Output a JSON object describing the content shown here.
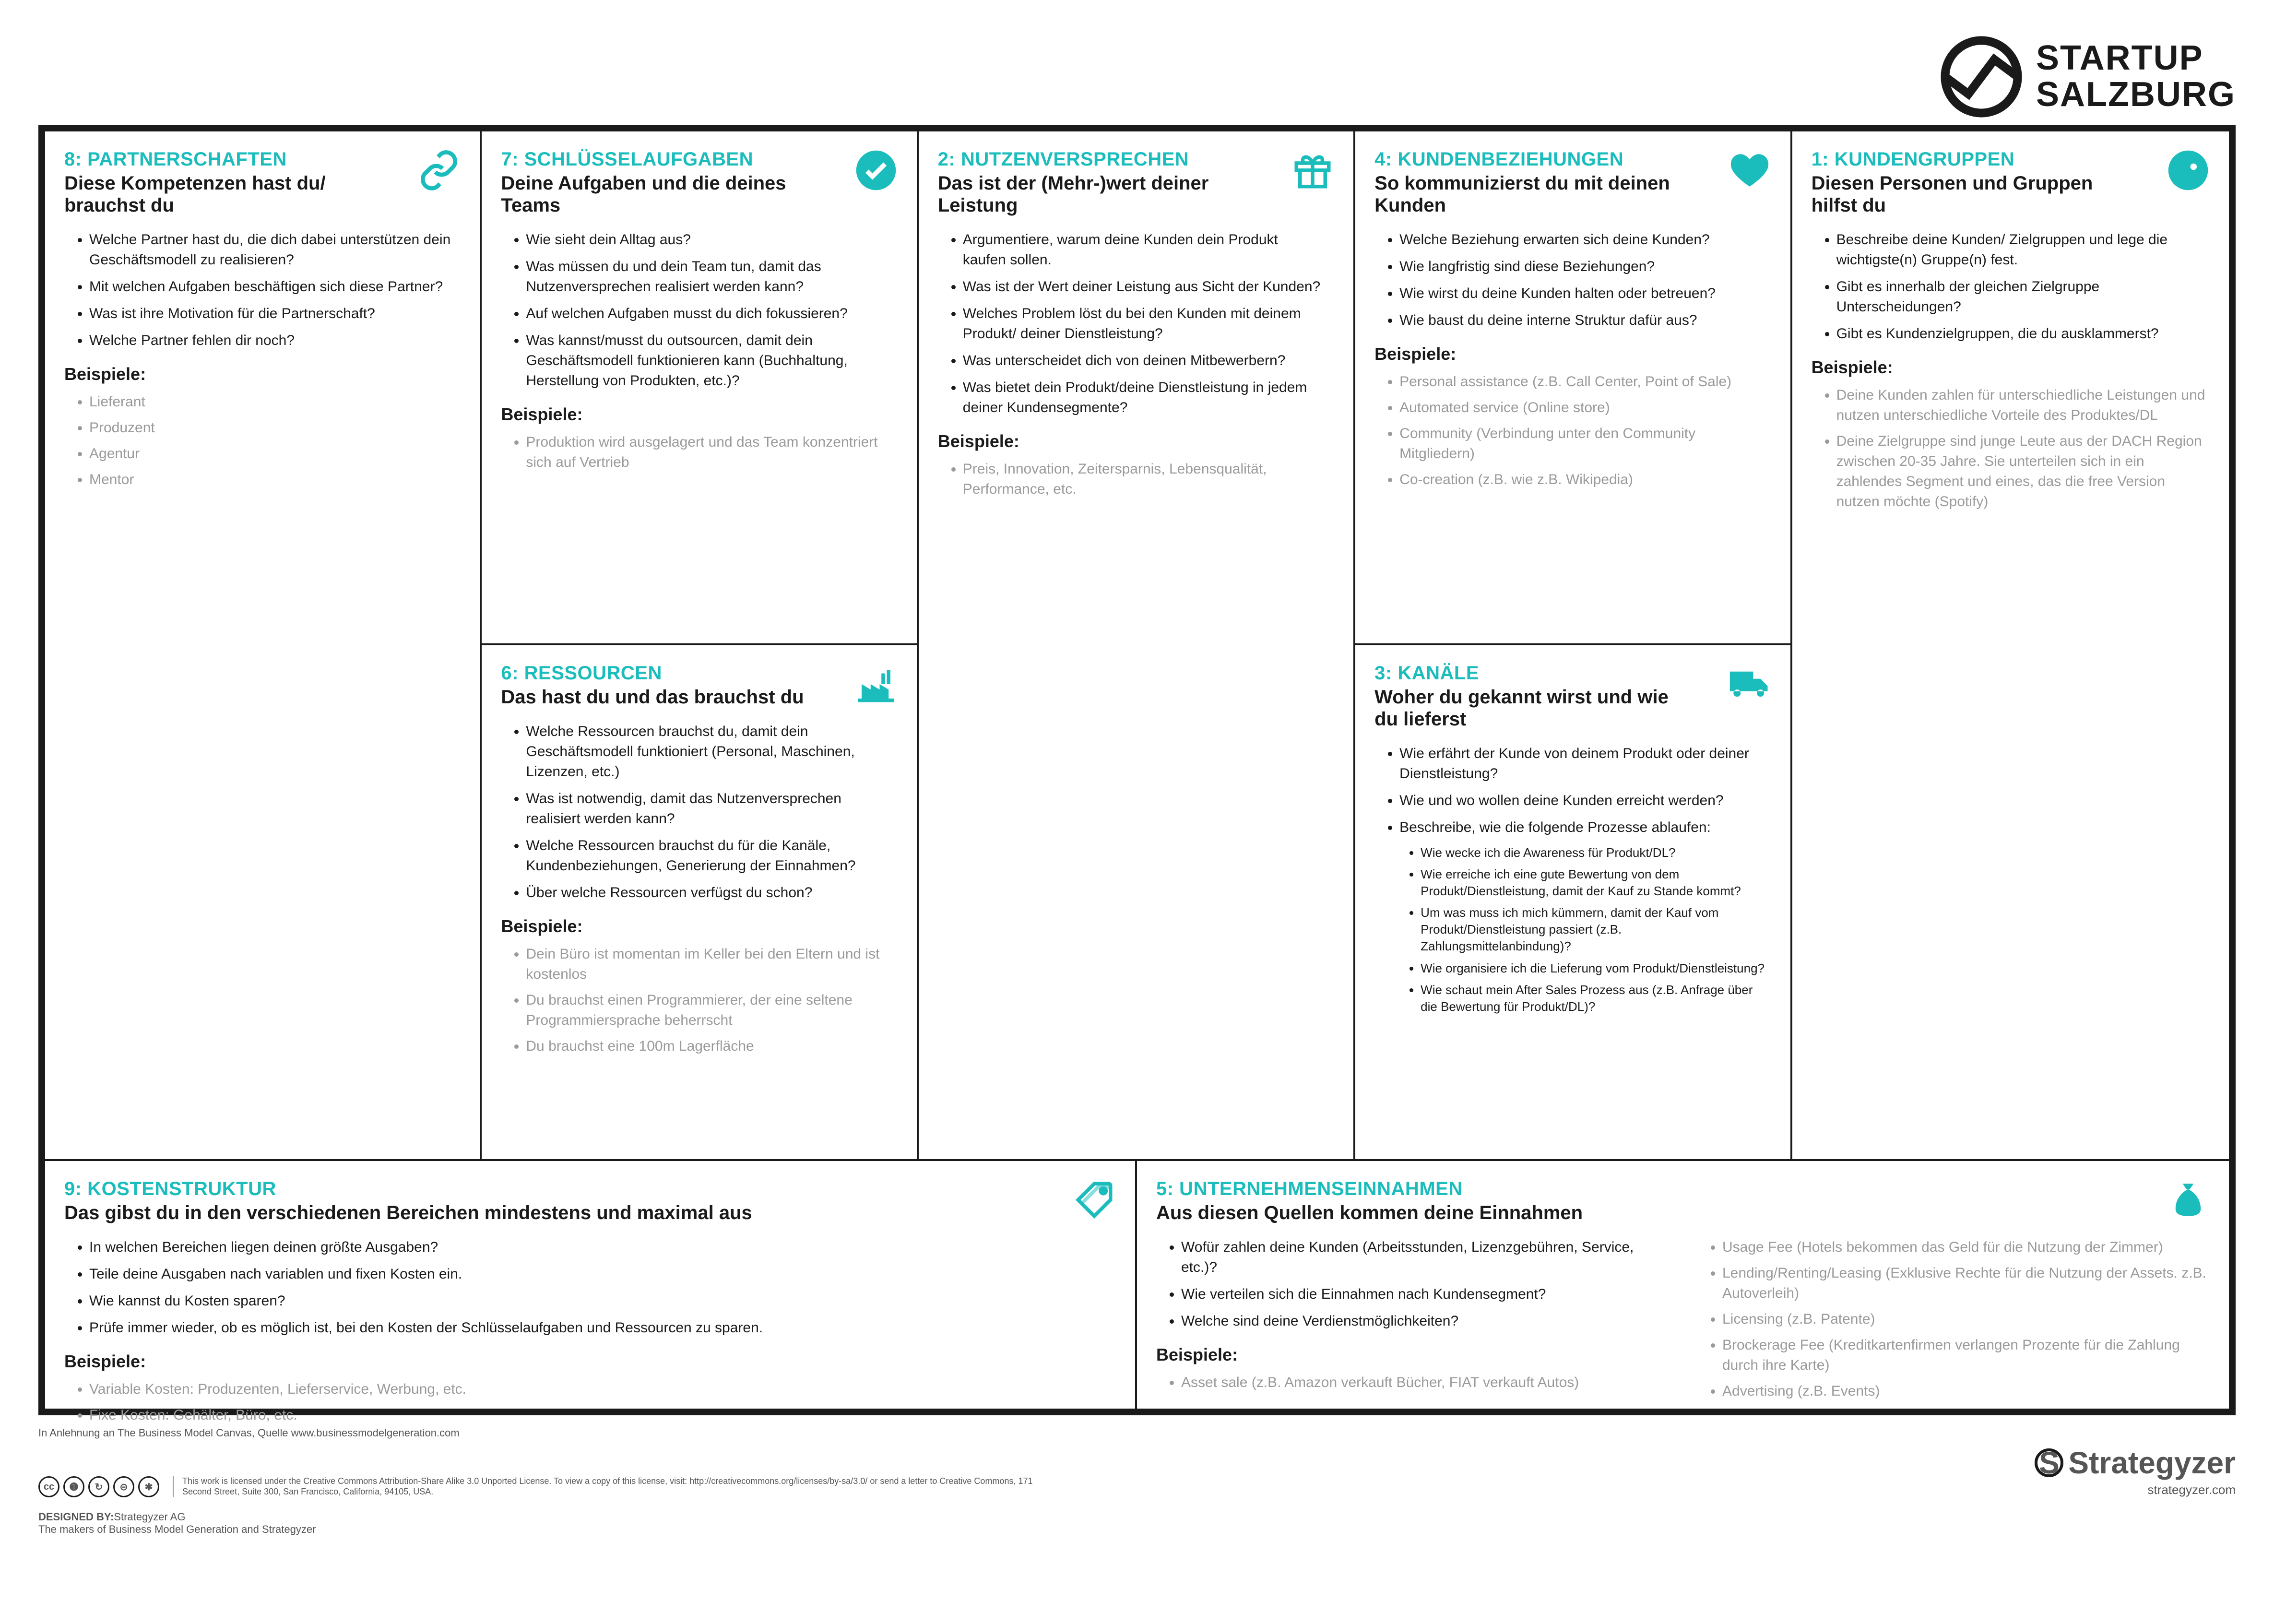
{
  "brand": {
    "line1": "STARTUP",
    "line2": "SALZBURG"
  },
  "accent_color": "#1abcbc",
  "cells": {
    "partnerships": {
      "title": "8: PARTNERSCHAFTEN",
      "subtitle": "Diese Kompetenzen hast du/ brauchst du",
      "questions": [
        "Welche Partner hast du, die dich dabei unterstützen dein Geschäftsmodell zu realisieren?",
        "Mit welchen Aufgaben beschäftigen sich diese Partner?",
        "Was ist ihre Motivation für die Partnerschaft?",
        "Welche Partner fehlen dir noch?"
      ],
      "examples_head": "Beispiele:",
      "examples": [
        "Lieferant",
        "Produzent",
        "Agentur",
        "Mentor"
      ]
    },
    "activities": {
      "title": "7: SCHLÜSSELAUFGABEN",
      "subtitle": "Deine Aufgaben und die deines Teams",
      "questions": [
        "Wie sieht dein Alltag aus?",
        "Was müssen du und dein Team tun, damit das Nutzenversprechen realisiert werden kann?",
        "Auf welchen Aufgaben musst du dich fokussieren?",
        "Was kannst/musst du outsourcen, damit dein Geschäftsmodell funktionieren kann (Buchhaltung, Herstellung von Produkten, etc.)?"
      ],
      "examples_head": "Beispiele:",
      "examples": [
        "Produktion wird ausgelagert und das Team konzentriert sich auf Vertrieb"
      ]
    },
    "resources": {
      "title": "6: RESSOURCEN",
      "subtitle": "Das hast du und das brauchst du",
      "questions": [
        "Welche Ressourcen brauchst du, damit dein Geschäftsmodell funktioniert (Personal, Maschinen, Lizenzen, etc.)",
        "Was ist notwendig, damit das Nutzenversprechen realisiert werden kann?",
        "Welche Ressourcen brauchst du für die Kanäle, Kundenbeziehungen, Generierung der Einnahmen?",
        "Über welche Ressourcen verfügst du schon?"
      ],
      "examples_head": "Beispiele:",
      "examples": [
        "Dein Büro ist momentan im Keller bei den Eltern und ist kostenlos",
        "Du brauchst einen Programmierer, der eine seltene Programmiersprache beherrscht",
        "Du brauchst eine 100m Lagerfläche"
      ]
    },
    "value": {
      "title": "2: NUTZENVERSPRECHEN",
      "subtitle": "Das ist der (Mehr-)wert deiner Leistung",
      "questions": [
        "Argumentiere, warum deine Kunden dein Produkt kaufen sollen.",
        "Was ist der Wert deiner Leistung aus Sicht der Kunden?",
        "Welches Problem löst du bei den Kunden mit deinem Produkt/ deiner Dienstleistung?",
        "Was unterscheidet dich von deinen Mitbewerbern?",
        "Was bietet dein Produkt/deine Dienstleistung in jedem deiner Kundensegmente?"
      ],
      "examples_head": "Beispiele:",
      "examples": [
        "Preis, Innovation, Zeitersparnis, Lebensqualität, Performance, etc."
      ]
    },
    "relations": {
      "title": "4: KUNDENBEZIEHUNGEN",
      "subtitle": "So kommunizierst du mit deinen Kunden",
      "questions": [
        "Welche Beziehung erwarten sich deine Kunden?",
        "Wie langfristig sind diese Beziehungen?",
        "Wie wirst du deine Kunden halten oder betreuen?",
        "Wie baust du deine interne Struktur dafür aus?"
      ],
      "examples_head": "Beispiele:",
      "examples": [
        "Personal assistance (z.B. Call Center, Point of Sale)",
        "Automated service (Online store)",
        "Community (Verbindung unter den Community Mitgliedern)",
        "Co-creation (z.B. wie z.B. Wikipedia)"
      ]
    },
    "channels": {
      "title": "3: KANÄLE",
      "subtitle": "Woher du gekannt wirst und wie du lieferst",
      "questions": [
        "Wie erfährt der Kunde von deinem Produkt oder deiner Dienstleistung?",
        "Wie und wo wollen deine Kunden erreicht werden?",
        "Beschreibe, wie die folgende Prozesse ablaufen:"
      ],
      "subquestions": [
        "Wie wecke ich die Awareness für Produkt/DL?",
        "Wie erreiche ich eine gute Bewertung von dem Produkt/Dienstleistung, damit der Kauf zu Stande kommt?",
        "Um was muss ich mich kümmern, damit der Kauf vom Produkt/Dienstleistung passiert (z.B. Zahlungsmittelanbindung)?",
        "Wie organisiere ich die Lieferung vom Produkt/Dienstleistung?",
        "Wie schaut mein After Sales Prozess aus (z.B. Anfrage über die Bewertung für Produkt/DL)?"
      ]
    },
    "segments": {
      "title": "1: KUNDENGRUPPEN",
      "subtitle": "Diesen Personen und Gruppen hilfst du",
      "questions": [
        "Beschreibe deine Kunden/ Zielgruppen und lege die wichtigste(n) Gruppe(n) fest.",
        "Gibt es innerhalb der gleichen Zielgruppe Unterscheidungen?",
        "Gibt es Kundenzielgruppen, die du ausklammerst?"
      ],
      "examples_head": "Beispiele:",
      "examples": [
        "Deine Kunden zahlen für unterschiedliche Leistungen und nutzen unterschiedliche Vorteile des Produktes/DL",
        "Deine Zielgruppe sind junge Leute aus der DACH Region zwischen 20-35 Jahre. Sie unterteilen sich in ein zahlendes Segment und eines, das die free Version nutzen möchte (Spotify)"
      ]
    },
    "costs": {
      "title": "9: KOSTENSTRUKTUR",
      "subtitle": "Das gibst du in den verschiedenen Bereichen mindestens und maximal aus",
      "questions": [
        "In welchen Bereichen liegen deinen größte Ausgaben?",
        "Teile deine Ausgaben nach variablen und fixen Kosten ein.",
        "Wie kannst du Kosten sparen?",
        "Prüfe immer wieder, ob es möglich ist, bei den Kosten der Schlüsselaufgaben und Ressourcen zu sparen."
      ],
      "examples_head": "Beispiele:",
      "examples": [
        "Variable Kosten: Produzenten, Lieferservice, Werbung, etc.",
        "Fixe Kosten: Gehälter, Büro, etc."
      ]
    },
    "revenue": {
      "title": "5: UNTERNEHMENSEINNAHMEN",
      "subtitle": "Aus diesen Quellen kommen deine Einnahmen",
      "questions": [
        "Wofür zahlen deine Kunden (Arbeitsstunden, Lizenzgebühren, Service, etc.)?",
        "Wie verteilen sich die Einnahmen nach Kundensegment?",
        "Welche sind deine Verdienstmöglichkeiten?"
      ],
      "examples_head": "Beispiele:",
      "examples_left": [
        "Asset sale (z.B. Amazon verkauft Bücher, FIAT verkauft Autos)"
      ],
      "examples_right": [
        "Usage Fee (Hotels bekommen das Geld für die Nutzung der Zimmer)",
        "Lending/Renting/Leasing (Exklusive Rechte für die Nutzung der Assets. z.B. Autoverleih)",
        "Licensing (z.B. Patente)",
        "Brockerage Fee (Kreditkartenfirmen verlangen Prozente für die Zahlung durch ihre Karte)",
        "Advertising (z.B. Events)"
      ]
    }
  },
  "footer": {
    "credit": "In Anlehnung an The Business Model Canvas, Quelle www.businessmodelgeneration.com",
    "license": "This work is licensed under the Creative Commons Attribution-Share Alike 3.0 Unported License. To view a copy of this license, visit: http://creativecommons.org/licenses/by-sa/3.0/ or send a letter to Creative Commons, 171 Second Street, Suite 300, San Francisco, California, 94105, USA.",
    "designed_label": "DESIGNED BY:",
    "designed_by": "Strategyzer AG",
    "tagline": "The makers of Business Model Generation and Strategyzer",
    "strategyzer": "Strategyzer",
    "strategyzer_url": "strategyzer.com"
  }
}
